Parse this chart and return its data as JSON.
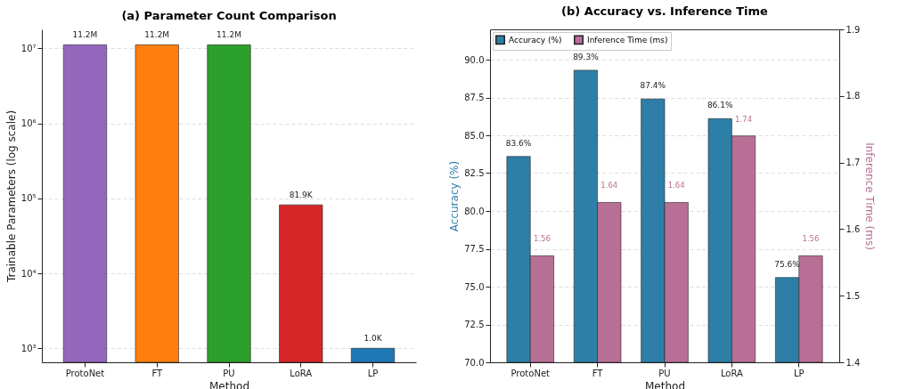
{
  "chart_data": [
    {
      "type": "bar",
      "title": "(a) Parameter Count Comparison",
      "xlabel": "Method",
      "ylabel": "Trainable Parameters (log scale)",
      "categories": [
        "ProtoNet",
        "FT",
        "PU",
        "LoRA",
        "LP"
      ],
      "values": [
        11200000,
        11200000,
        11200000,
        81900,
        1000
      ],
      "colors": [
        "#9467bd",
        "#ff7f0e",
        "#2ca02c",
        "#d62728",
        "#1f77b4"
      ],
      "value_labels": [
        "11.2M",
        "11.2M",
        "11.2M",
        "81.9K",
        "1.0K"
      ],
      "log": true,
      "ylim": [
        650,
        18000000
      ],
      "yticks": [
        {
          "value": 1000,
          "label": "10³"
        },
        {
          "value": 10000,
          "label": "10⁴"
        },
        {
          "value": 100000,
          "label": "10⁵"
        },
        {
          "value": 1000000,
          "label": "10⁶"
        },
        {
          "value": 10000000,
          "label": "10⁷"
        }
      ],
      "grid": "y"
    },
    {
      "type": "bar",
      "title": "(b) Accuracy vs. Inference Time",
      "xlabel": "Method",
      "ylabel": "Accuracy (%)",
      "y2label": "Inference Time (ms)",
      "categories": [
        "ProtoNet",
        "FT",
        "PU",
        "LoRA",
        "LP"
      ],
      "series": [
        {
          "name": "Accuracy (%)",
          "color": "#2e7fa8",
          "values": [
            83.6,
            89.3,
            87.4,
            86.1,
            75.6
          ],
          "value_labels": [
            "83.6%",
            "89.3%",
            "87.4%",
            "86.1%",
            "75.6%"
          ]
        },
        {
          "name": "Inference Time (ms)",
          "color": "#b86f96",
          "values": [
            1.56,
            1.64,
            1.64,
            1.74,
            1.56
          ],
          "value_labels": [
            "1.56",
            "1.64",
            "1.64",
            "1.74",
            "1.56"
          ],
          "axis": "y2"
        }
      ],
      "ylim": [
        70,
        92
      ],
      "yticks": [
        {
          "value": 70,
          "label": "70.0"
        },
        {
          "value": 72.5,
          "label": "72.5"
        },
        {
          "value": 75,
          "label": "75.0"
        },
        {
          "value": 77.5,
          "label": "77.5"
        },
        {
          "value": 80,
          "label": "80.0"
        },
        {
          "value": 82.5,
          "label": "82.5"
        },
        {
          "value": 85,
          "label": "85.0"
        },
        {
          "value": 87.5,
          "label": "87.5"
        },
        {
          "value": 90,
          "label": "90.0"
        }
      ],
      "y2lim": [
        1.4,
        1.9
      ],
      "y2ticks": [
        1.4,
        1.5,
        1.6,
        1.7,
        1.8,
        1.9
      ],
      "grid": "y",
      "legend": "top left"
    }
  ]
}
